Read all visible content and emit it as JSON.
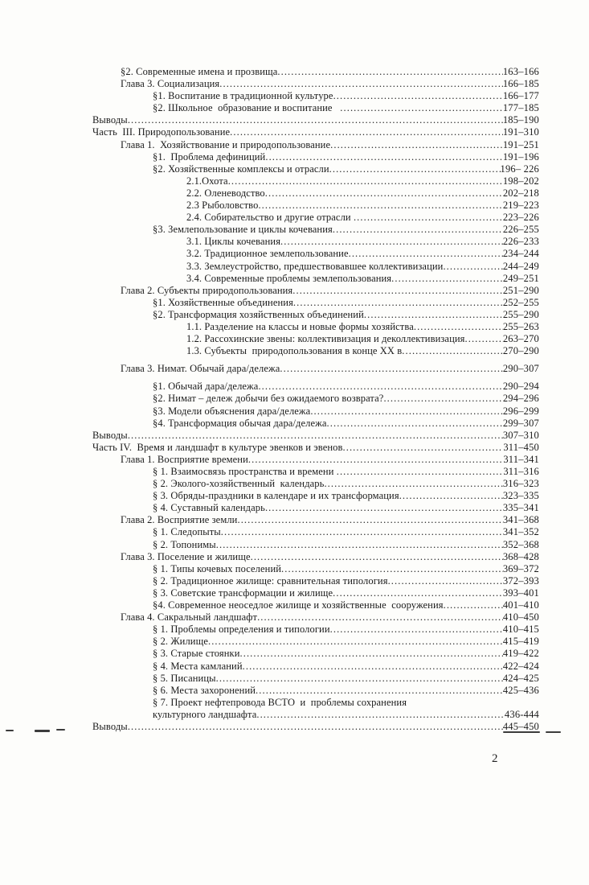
{
  "colors": {
    "paper": "#fdfdfb",
    "ink": "#1b1b1b"
  },
  "footer": {
    "page_number": "2"
  },
  "toc": {
    "rows": [
      {
        "level": 1,
        "label": "§2. Современные имена и прозвища",
        "pages": "163–166"
      },
      {
        "level": 1,
        "label": "Глава 3. Социализация",
        "pages": "166–185"
      },
      {
        "level": 2,
        "label": "§1. Воспитание в традиционной культуре",
        "pages": "166–177"
      },
      {
        "level": 2,
        "label": "§2. Школьное  образование и воспитание   ",
        "pages": "177–185"
      },
      {
        "level": 0,
        "label": "Выводы",
        "pages": "185–190"
      },
      {
        "level": 0,
        "label": "Часть  III. Природопользование",
        "pages": "191–310"
      },
      {
        "level": 1,
        "label": "Глава 1.  Хозяйствование и природопользование",
        "pages": "191–251"
      },
      {
        "level": 2,
        "label": "§1.  Проблема дефиниций",
        "pages": "191–196"
      },
      {
        "level": 2,
        "label": "§2. Хозяйственные комплексы и отрасли",
        "pages": "196– 226"
      },
      {
        "level": 3,
        "label": "2.1.Охота",
        "pages": "198–202"
      },
      {
        "level": 3,
        "label": "2.2. Оленеводство",
        "pages": "202–218"
      },
      {
        "level": 3,
        "label": "2.3 Рыболовство",
        "pages": "219–223"
      },
      {
        "level": 3,
        "label": "2.4. Собирательство и другие отрасли ",
        "pages": "223–226"
      },
      {
        "level": 2,
        "label": "§3. Землепользование и циклы кочевания",
        "pages": "226–255"
      },
      {
        "level": 3,
        "label": "3.1. Циклы кочевания",
        "pages": "226–233"
      },
      {
        "level": 3,
        "label": "3.2. Традиционное землепользование",
        "pages": "234–244"
      },
      {
        "level": 3,
        "label": "3.3. Землеустройство, предшествовавшее коллективизации",
        "pages": "244–249"
      },
      {
        "level": 3,
        "label": "3.4. Современные проблемы землепользования",
        "pages": "249–251"
      },
      {
        "level": 1,
        "label": "Глава 2. Субъекты природопользования",
        "pages": "251–290"
      },
      {
        "level": 2,
        "label": "§1. Хозяйственные объединения",
        "pages": "252–255"
      },
      {
        "level": 2,
        "label": "§2. Трансформация хозяйственных объединений",
        "pages": "255–290"
      },
      {
        "level": 3,
        "label": "1.1. Разделение на классы и новые формы хозяйства",
        "pages": "255–263"
      },
      {
        "level": 3,
        "label": "1.2. Рассохинские звены: коллективизация и деколлективизация",
        "pages": "263–270"
      },
      {
        "level": 3,
        "label": "1.3. Субъекты  природопользования в конце XX в",
        "pages": "270–290"
      },
      {
        "level": 1,
        "label": "Глава 3. Нимат. Обычай дара/дележа",
        "pages": "290–307",
        "gap_before": true
      },
      {
        "level": 2,
        "label": "§1. Обычай дара/дележа",
        "pages": "290–294",
        "gap_before": true
      },
      {
        "level": 2,
        "label": "§2. Нимат – дележ добычи без ожидаемого возврата?",
        "pages": "294–296"
      },
      {
        "level": 2,
        "label": "§3. Модели объяснения дара/дележа",
        "pages": "296–299"
      },
      {
        "level": 2,
        "label": "§4. Трансформация обычая дара/дележа",
        "pages": "299–307"
      },
      {
        "level": 0,
        "label": "Выводы",
        "pages": "307–310"
      },
      {
        "level": 0,
        "label": "Часть IV.  Время и ландшафт в культуре эвенков и эвенов",
        "pages": "311–450"
      },
      {
        "level": 1,
        "label": "Глава 1. Восприятие времени",
        "pages": "311–341"
      },
      {
        "level": 2,
        "label": "§ 1. Взаимосвязь пространства и времени ",
        "pages": "311–316"
      },
      {
        "level": 2,
        "label": "§ 2. Эколого-хозяйственный  календарь",
        "pages": "316–323"
      },
      {
        "level": 2,
        "label": "§ 3. Обряды-праздники в календаре и их трансформация",
        "pages": "323–335"
      },
      {
        "level": 2,
        "label": "§ 4. Суставный календарь",
        "pages": "335–341"
      },
      {
        "level": 1,
        "label": "Глава 2. Восприятие земли",
        "pages": "341–368"
      },
      {
        "level": 2,
        "label": "§ 1. Следопыты",
        "pages": "341–352"
      },
      {
        "level": 2,
        "label": "§ 2. Топонимы",
        "pages": "352–368"
      },
      {
        "level": 1,
        "label": "Глава 3. Поселение и жилище",
        "pages": "368–428"
      },
      {
        "level": 2,
        "label": "§ 1. Типы кочевых поселений",
        "pages": "369–372"
      },
      {
        "level": 2,
        "label": "§ 2. Традиционное жилище: сравнительная типология",
        "pages": "372–393"
      },
      {
        "level": 2,
        "label": "§ 3. Советские трансформации и жилище",
        "pages": "393–401"
      },
      {
        "level": 2,
        "label": "§4. Современное неоседлое жилище и хозяйственные  сооружения",
        "pages": "401–410"
      },
      {
        "level": 1,
        "label": "Глава 4. Сакральный ландшафт",
        "pages": "410–450"
      },
      {
        "level": 2,
        "label": "§ 1. Проблемы определения и типологии",
        "pages": "410–415"
      },
      {
        "level": 2,
        "label": "§ 2. Жилище",
        "pages": "415–419"
      },
      {
        "level": 2,
        "label": "§ 3. Старые стоянки",
        "pages": "419–422"
      },
      {
        "level": 2,
        "label": "§ 4. Места камланий",
        "pages": "422–424"
      },
      {
        "level": 2,
        "label": "§ 5. Писаницы",
        "pages": "424–425"
      },
      {
        "level": 2,
        "label": "§ 6. Места захоронений",
        "pages": "425–436"
      },
      {
        "level": 2,
        "label": "§ 7. Проект нефтепровода ВСТО  и  проблемы сохранения",
        "pages": ""
      },
      {
        "level": 2,
        "label": "культурного ландшафта",
        "pages": "436-444"
      },
      {
        "level": 0,
        "label": "Выводы",
        "pages": "445–450"
      }
    ]
  }
}
